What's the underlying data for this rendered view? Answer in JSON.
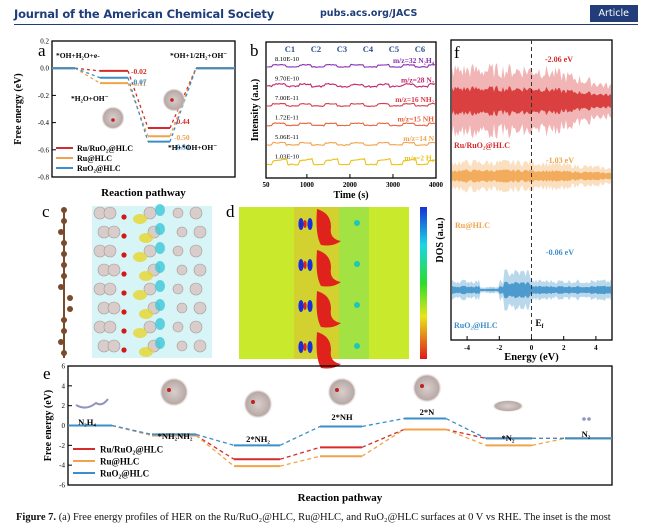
{
  "header": {
    "journal": "Journal of the American Chemical Society",
    "url": "pubs.acs.org/JACS",
    "badge": "Article"
  },
  "caption": {
    "label": "Figure 7.",
    "text": " (a) Free energy profiles of HER on the Ru/RuO₂@HLC, Ru@HLC, and RuO₂@HLC surfaces at 0 V vs RHE. The inset is the most"
  },
  "colors": {
    "ru_ruo2": "#d62b2b",
    "ru": "#f0a34a",
    "ruo2": "#3a8fc9"
  },
  "chart_data": [
    {
      "id": "a",
      "type": "line",
      "title": "",
      "panel_label": "a",
      "xlabel": "Reaction pathway",
      "ylabel": "Free energy (eV)",
      "ylim": [
        -0.8,
        0.2
      ],
      "yticks": [
        "0.2",
        "0.0",
        "-0.2",
        "-0.4",
        "-0.6",
        "-0.8"
      ],
      "steps": [
        "*OH+H₂O+e-",
        "*H₂O+OH⁻",
        "*H+*OH+OH⁻",
        "*OH+1/2H₂+OH⁻"
      ],
      "series": [
        {
          "name": "Ru/RuO₂@HLC",
          "color": "#d62b2b",
          "values": [
            0,
            -0.02,
            -0.44,
            0
          ],
          "labels": [
            "",
            "-0.02",
            "-0.44",
            ""
          ]
        },
        {
          "name": "Ru@HLC",
          "color": "#f0a34a",
          "values": [
            0,
            -0.11,
            -0.5,
            0
          ],
          "labels": [
            "",
            "-0.11",
            "-0.50",
            ""
          ]
        },
        {
          "name": "RuO₂@HLC",
          "color": "#3a8fc9",
          "values": [
            0,
            -0.07,
            -0.54,
            0
          ],
          "labels": [
            "",
            "-0.07",
            "-0.54",
            ""
          ]
        }
      ],
      "legend": "bottom-left"
    },
    {
      "id": "b",
      "type": "line",
      "panel_label": "b",
      "xlabel": "Time (s)",
      "ylabel": "Intensity (a.u.)",
      "xlim": [
        50,
        4000
      ],
      "xticks": [
        "50",
        "1000",
        "2000",
        "3000",
        "4000"
      ],
      "cycles": [
        "C1",
        "C2",
        "C3",
        "C4",
        "C5",
        "C6"
      ],
      "series": [
        {
          "name": "m/z=32 N₂H₄",
          "scale": "8.10E-10",
          "color": "#8a2fb3"
        },
        {
          "name": "m/z=28 N₂",
          "scale": "9.70E-10",
          "color": "#c2256e"
        },
        {
          "name": "m/z=16 NH₂",
          "scale": "7.00E-11",
          "color": "#d83b4a"
        },
        {
          "name": "m/z=15 NH",
          "scale": "1.72E-11",
          "color": "#e8643a"
        },
        {
          "name": "m/z=14 N",
          "scale": "5.06E-11",
          "color": "#f2a14a"
        },
        {
          "name": "m/z=2 H₂",
          "scale": "1.03E-10",
          "color": "#e9c21c"
        }
      ]
    },
    {
      "id": "f",
      "type": "area",
      "panel_label": "f",
      "xlabel": "Energy (eV)",
      "ylabel": "DOS (a.u.)",
      "xlim": [
        -5,
        5
      ],
      "xticks": [
        "-4",
        "-2",
        "0",
        "2",
        "4"
      ],
      "fermi_label": "Ef",
      "series": [
        {
          "name": "Ru/RuO₂@HLC",
          "center": "-2.06 eV",
          "color": "#d62b2b"
        },
        {
          "name": "Ru@HLC",
          "center": "-1.03 eV",
          "color": "#f0a34a"
        },
        {
          "name": "RuO₂@HLC",
          "center": "-0.06 eV",
          "color": "#3a8fc9"
        }
      ]
    },
    {
      "id": "e",
      "type": "line",
      "panel_label": "e",
      "xlabel": "Reaction pathway",
      "ylabel": "Free energy (eV)",
      "ylim": [
        -6,
        6
      ],
      "yticks": [
        "6",
        "4",
        "2",
        "0",
        "-2",
        "-4",
        "-6"
      ],
      "steps": [
        "N₂H₄",
        "*NH₂NH₂",
        "2*NH₂",
        "2*NH",
        "2*N",
        "*N₂",
        "N₂"
      ],
      "series": [
        {
          "name": "Ru/RuO₂@HLC",
          "color": "#d62b2b",
          "values": [
            0,
            -1.0,
            -3.4,
            -2.2,
            -0.4,
            -1.3,
            -1.3
          ]
        },
        {
          "name": "Ru@HLC",
          "color": "#f0a34a",
          "values": [
            0,
            -1.0,
            -4.1,
            -3.1,
            -0.4,
            -2.0,
            -1.3
          ]
        },
        {
          "name": "RuO₂@HLC",
          "color": "#3a8fc9",
          "values": [
            0,
            -0.9,
            -2.0,
            -0.1,
            0.7,
            -1.3,
            -1.3
          ]
        }
      ],
      "legend": "bottom-left"
    }
  ],
  "panels": {
    "c": {
      "label": "c"
    },
    "d": {
      "label": "d"
    }
  }
}
